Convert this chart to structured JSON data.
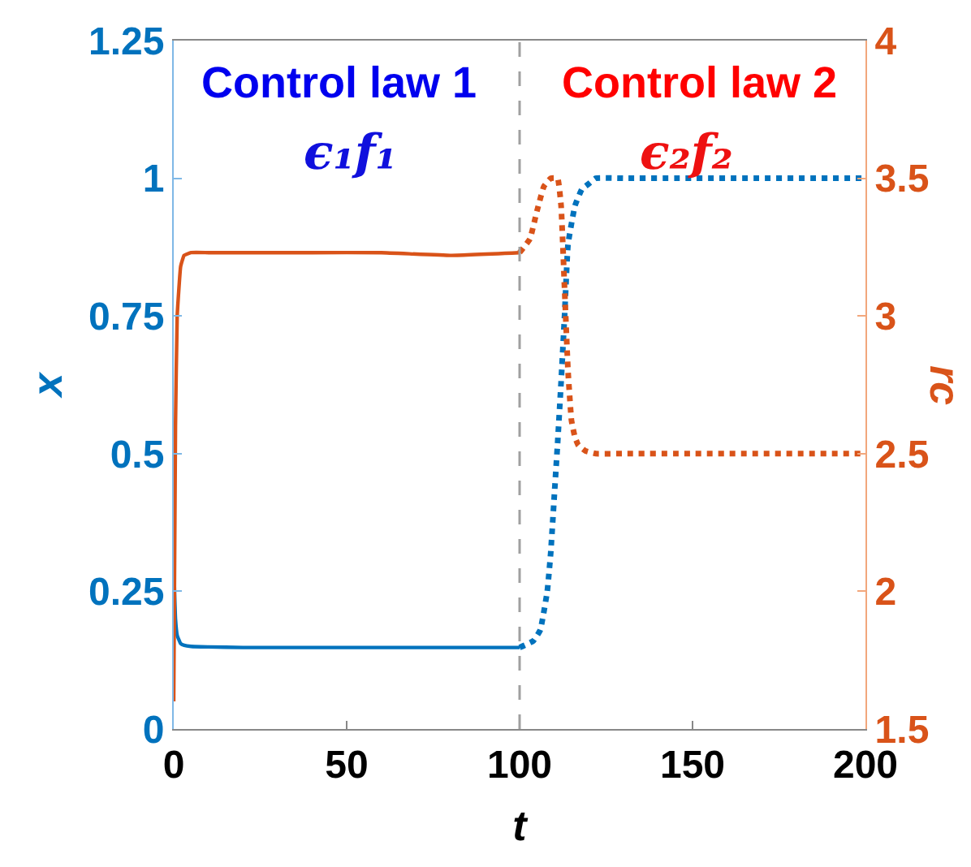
{
  "chart_data": {
    "type": "line",
    "xlabel": "t",
    "ylabel": "x",
    "y2label": "rc",
    "xlim": [
      0,
      200
    ],
    "xticks": [
      0,
      50,
      100,
      150,
      200
    ],
    "ylim": [
      0,
      1.25
    ],
    "yticks": [
      0,
      0.25,
      0.5,
      0.75,
      1,
      1.25
    ],
    "y2lim": [
      1.5,
      4
    ],
    "y2ticks": [
      1.5,
      2,
      2.5,
      3,
      3.5,
      4
    ],
    "annotations": [
      "Control law 1",
      "ϵ₁f₁",
      "Control law 2",
      "ϵ₂f₂"
    ],
    "ref_lines": [
      {
        "axis": "x",
        "value": 100,
        "color": "#a0a0a0",
        "line_style": "dashed"
      }
    ],
    "series": [
      {
        "color": "#0072bd",
        "line_style": "solid",
        "x": [
          0,
          0.5,
          1,
          2,
          3,
          5,
          10,
          20,
          40,
          60,
          80,
          100
        ],
        "values": [
          0.3,
          0.2,
          0.17,
          0.155,
          0.152,
          0.15,
          0.149,
          0.148,
          0.148,
          0.148,
          0.148,
          0.148
        ]
      },
      {
        "color": "#d95319",
        "line_style": "solid",
        "axis": "y2",
        "x": [
          0,
          0.5,
          1,
          2,
          3,
          5,
          10,
          20,
          40,
          60,
          80,
          100
        ],
        "values": [
          1.6,
          2.6,
          3.0,
          3.18,
          3.22,
          3.23,
          3.23,
          3.23,
          3.23,
          3.23,
          3.22,
          3.23
        ]
      },
      {
        "color": "#0072bd",
        "line_style": "dotted",
        "x": [
          100,
          104,
          106,
          108,
          109,
          110,
          111,
          112,
          113,
          114,
          116,
          118,
          120,
          122,
          130,
          150,
          200
        ],
        "values": [
          0.148,
          0.16,
          0.18,
          0.25,
          0.32,
          0.42,
          0.52,
          0.63,
          0.75,
          0.88,
          0.95,
          0.98,
          0.99,
          1.0,
          1.0,
          1.0,
          1.0
        ]
      },
      {
        "color": "#d95319",
        "line_style": "dotted",
        "axis": "y2",
        "x": [
          100,
          103,
          105,
          107,
          109,
          111,
          112,
          113,
          114,
          115,
          116,
          117,
          119,
          122,
          130,
          150,
          200
        ],
        "values": [
          3.23,
          3.28,
          3.38,
          3.47,
          3.5,
          3.5,
          3.4,
          3.1,
          2.8,
          2.62,
          2.56,
          2.53,
          2.51,
          2.5,
          2.5,
          2.5,
          2.5
        ]
      }
    ]
  }
}
